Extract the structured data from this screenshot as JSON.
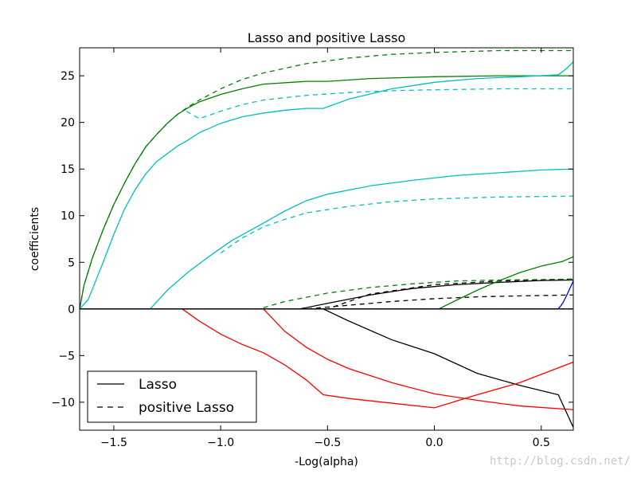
{
  "chart_data": {
    "type": "line",
    "title": "Lasso and positive Lasso",
    "xlabel": "-Log(alpha)",
    "ylabel": "coefficients",
    "xlim": [
      -1.66,
      0.65
    ],
    "ylim": [
      -13,
      28
    ],
    "xticks": [
      -1.5,
      -1.0,
      -0.5,
      0.0,
      0.5
    ],
    "xtick_labels": [
      "−1.5",
      "−1.0",
      "−0.5",
      "0.0",
      "0.5"
    ],
    "yticks": [
      25,
      20,
      15,
      10,
      5,
      0,
      -5,
      -10
    ],
    "ytick_labels": [
      "25",
      "20",
      "15",
      "10",
      "5",
      "0",
      "−5",
      "−10"
    ],
    "grid": false,
    "legend": {
      "placement": "lower-left",
      "entries": [
        {
          "label": "Lasso",
          "dash": "solid"
        },
        {
          "label": "positive Lasso",
          "dash": "dashed"
        }
      ]
    },
    "series": [
      {
        "color": "#000000",
        "dash": "solid",
        "x": [
          -1.66,
          -0.52,
          -0.4,
          -0.2,
          0.0,
          0.2,
          0.4,
          0.58,
          0.6,
          0.65
        ],
        "y": [
          0,
          0,
          -1.3,
          -3.3,
          -4.8,
          -6.9,
          -8.2,
          -9.2,
          -10.2,
          -12.7
        ]
      },
      {
        "color": "#000000",
        "dash": "solid",
        "x": [
          -1.66,
          -0.63,
          -0.5,
          -0.3,
          -0.1,
          0.1,
          0.3,
          0.5,
          0.65
        ],
        "y": [
          0,
          0,
          0.6,
          1.5,
          2.2,
          2.6,
          2.85,
          3.05,
          3.1
        ]
      },
      {
        "color": "#000000",
        "dash": "dashed",
        "x": [
          -1.66,
          -0.6,
          -0.4,
          -0.2,
          0.0,
          0.2,
          0.4,
          0.65
        ],
        "y": [
          0,
          0,
          0.4,
          0.8,
          1.1,
          1.3,
          1.4,
          1.5
        ]
      },
      {
        "color": "#000000",
        "dash": "dashed",
        "x": [
          -1.66,
          -0.5,
          -0.3,
          0.0,
          0.3,
          0.65
        ],
        "y": [
          0,
          0,
          1.6,
          2.6,
          3.0,
          3.2
        ]
      },
      {
        "color": "#008000",
        "dash": "solid",
        "x": [
          -1.66,
          -1.64,
          -1.6,
          -1.55,
          -1.5,
          -1.45,
          -1.4,
          -1.35,
          -1.3,
          -1.25,
          -1.2,
          -1.15,
          -1.1,
          -1.0,
          -0.9,
          -0.8,
          -0.6,
          -0.5,
          -0.3,
          0.0,
          0.3,
          0.65
        ],
        "y": [
          0,
          2.5,
          5.5,
          8.5,
          11.2,
          13.5,
          15.6,
          17.4,
          18.7,
          19.9,
          20.9,
          21.6,
          22.2,
          23.0,
          23.6,
          24.1,
          24.4,
          24.4,
          24.7,
          24.9,
          25.0,
          25.0
        ]
      },
      {
        "color": "#008000",
        "dash": "dashed",
        "x": [
          -1.66,
          -1.64,
          -1.6,
          -1.55,
          -1.5,
          -1.45,
          -1.4,
          -1.35,
          -1.3,
          -1.25,
          -1.2,
          -1.15,
          -1.1,
          -1.0,
          -0.9,
          -0.8,
          -0.6,
          -0.4,
          -0.2,
          0.0,
          0.3,
          0.65
        ],
        "y": [
          0,
          2.5,
          5.5,
          8.5,
          11.2,
          13.5,
          15.6,
          17.4,
          18.7,
          19.9,
          20.9,
          21.7,
          22.4,
          23.6,
          24.6,
          25.3,
          26.3,
          26.9,
          27.3,
          27.5,
          27.7,
          27.7
        ]
      },
      {
        "color": "#008000",
        "dash": "solid",
        "x": [
          -1.66,
          0.02,
          0.1,
          0.2,
          0.3,
          0.4,
          0.5,
          0.6,
          0.65
        ],
        "y": [
          0,
          0,
          0.9,
          2.0,
          3.0,
          3.9,
          4.6,
          5.1,
          5.6
        ]
      },
      {
        "color": "#008000",
        "dash": "dashed",
        "x": [
          -1.66,
          -0.82,
          -0.7,
          -0.5,
          -0.3,
          -0.1,
          0.1,
          0.3,
          0.65
        ],
        "y": [
          0,
          0,
          0.8,
          1.7,
          2.3,
          2.7,
          3.0,
          3.1,
          3.2
        ]
      },
      {
        "color": "#00bfbf",
        "dash": "solid",
        "x": [
          -1.66,
          -1.62,
          -1.55,
          -1.5,
          -1.45,
          -1.4,
          -1.35,
          -1.3,
          -1.2,
          -1.16,
          -1.1,
          -1.0,
          -0.9,
          -0.8,
          -0.7,
          -0.6,
          -0.52,
          -0.4,
          -0.2,
          0.0,
          0.2,
          0.4,
          0.58,
          0.62,
          0.65
        ],
        "y": [
          0,
          1.0,
          5.0,
          8.0,
          10.7,
          12.8,
          14.5,
          15.8,
          17.5,
          18.0,
          18.9,
          19.9,
          20.6,
          21.0,
          21.3,
          21.5,
          21.5,
          22.5,
          23.6,
          24.3,
          24.7,
          24.9,
          25.1,
          25.8,
          26.5
        ]
      },
      {
        "color": "#00bfbf",
        "dash": "dashed",
        "x": [
          -1.16,
          -1.1,
          -1.0,
          -0.9,
          -0.8,
          -0.6,
          -0.4,
          -0.2,
          0.0,
          0.3,
          0.65
        ],
        "y": [
          21.2,
          20.4,
          21.2,
          21.9,
          22.4,
          22.9,
          23.2,
          23.4,
          23.5,
          23.6,
          23.6
        ]
      },
      {
        "color": "#00bfbf",
        "dash": "solid",
        "x": [
          -1.66,
          -1.33,
          -1.25,
          -1.15,
          -1.05,
          -0.95,
          -0.8,
          -0.7,
          -0.6,
          -0.5,
          -0.3,
          -0.1,
          0.1,
          0.3,
          0.5,
          0.65
        ],
        "y": [
          0,
          0,
          2.0,
          4.0,
          5.7,
          7.3,
          9.2,
          10.5,
          11.6,
          12.3,
          13.2,
          13.8,
          14.3,
          14.6,
          14.9,
          15.0
        ]
      },
      {
        "color": "#00bfbf",
        "dash": "dashed",
        "x": [
          -1.0,
          -0.9,
          -0.8,
          -0.7,
          -0.6,
          -0.4,
          -0.2,
          0.0,
          0.3,
          0.65
        ],
        "y": [
          6.0,
          7.6,
          8.8,
          9.6,
          10.3,
          11.0,
          11.5,
          11.8,
          12.0,
          12.1
        ]
      },
      {
        "color": "#00bfbf",
        "dash": "solid",
        "x": [
          -1.66,
          0.65
        ],
        "y": [
          0,
          0
        ]
      },
      {
        "color": "#ff0000",
        "dash": "solid",
        "x": [
          -1.66,
          -1.18,
          -1.1,
          -1.0,
          -0.9,
          -0.8,
          -0.7,
          -0.6,
          -0.52,
          -0.4,
          -0.2,
          0.0,
          0.2,
          0.4,
          0.65
        ],
        "y": [
          0,
          0,
          -1.3,
          -2.7,
          -3.8,
          -4.7,
          -6.0,
          -7.6,
          -9.2,
          -9.6,
          -10.1,
          -10.6,
          -9.2,
          -7.9,
          -5.7
        ]
      },
      {
        "color": "#ff0000",
        "dash": "solid",
        "x": [
          -1.66,
          -0.8,
          -0.7,
          -0.6,
          -0.5,
          -0.4,
          -0.2,
          0.0,
          0.2,
          0.4,
          0.65
        ],
        "y": [
          0,
          0,
          -2.4,
          -4.1,
          -5.4,
          -6.4,
          -7.9,
          -9.1,
          -9.8,
          -10.4,
          -10.8
        ]
      },
      {
        "color": "#ff0000",
        "dash": "dashed",
        "x": [
          -1.66,
          0.65
        ],
        "y": [
          0,
          0
        ]
      },
      {
        "color": "#0000ff",
        "dash": "solid",
        "x": [
          -1.66,
          0.58,
          0.6,
          0.62,
          0.65
        ],
        "y": [
          0,
          0,
          0.6,
          1.5,
          3.0
        ]
      },
      {
        "color": "#000000",
        "dash": "solid",
        "x": [
          -1.66,
          0.65
        ],
        "y": [
          0,
          0
        ]
      }
    ]
  },
  "watermark": "http://blog.csdn.net/"
}
